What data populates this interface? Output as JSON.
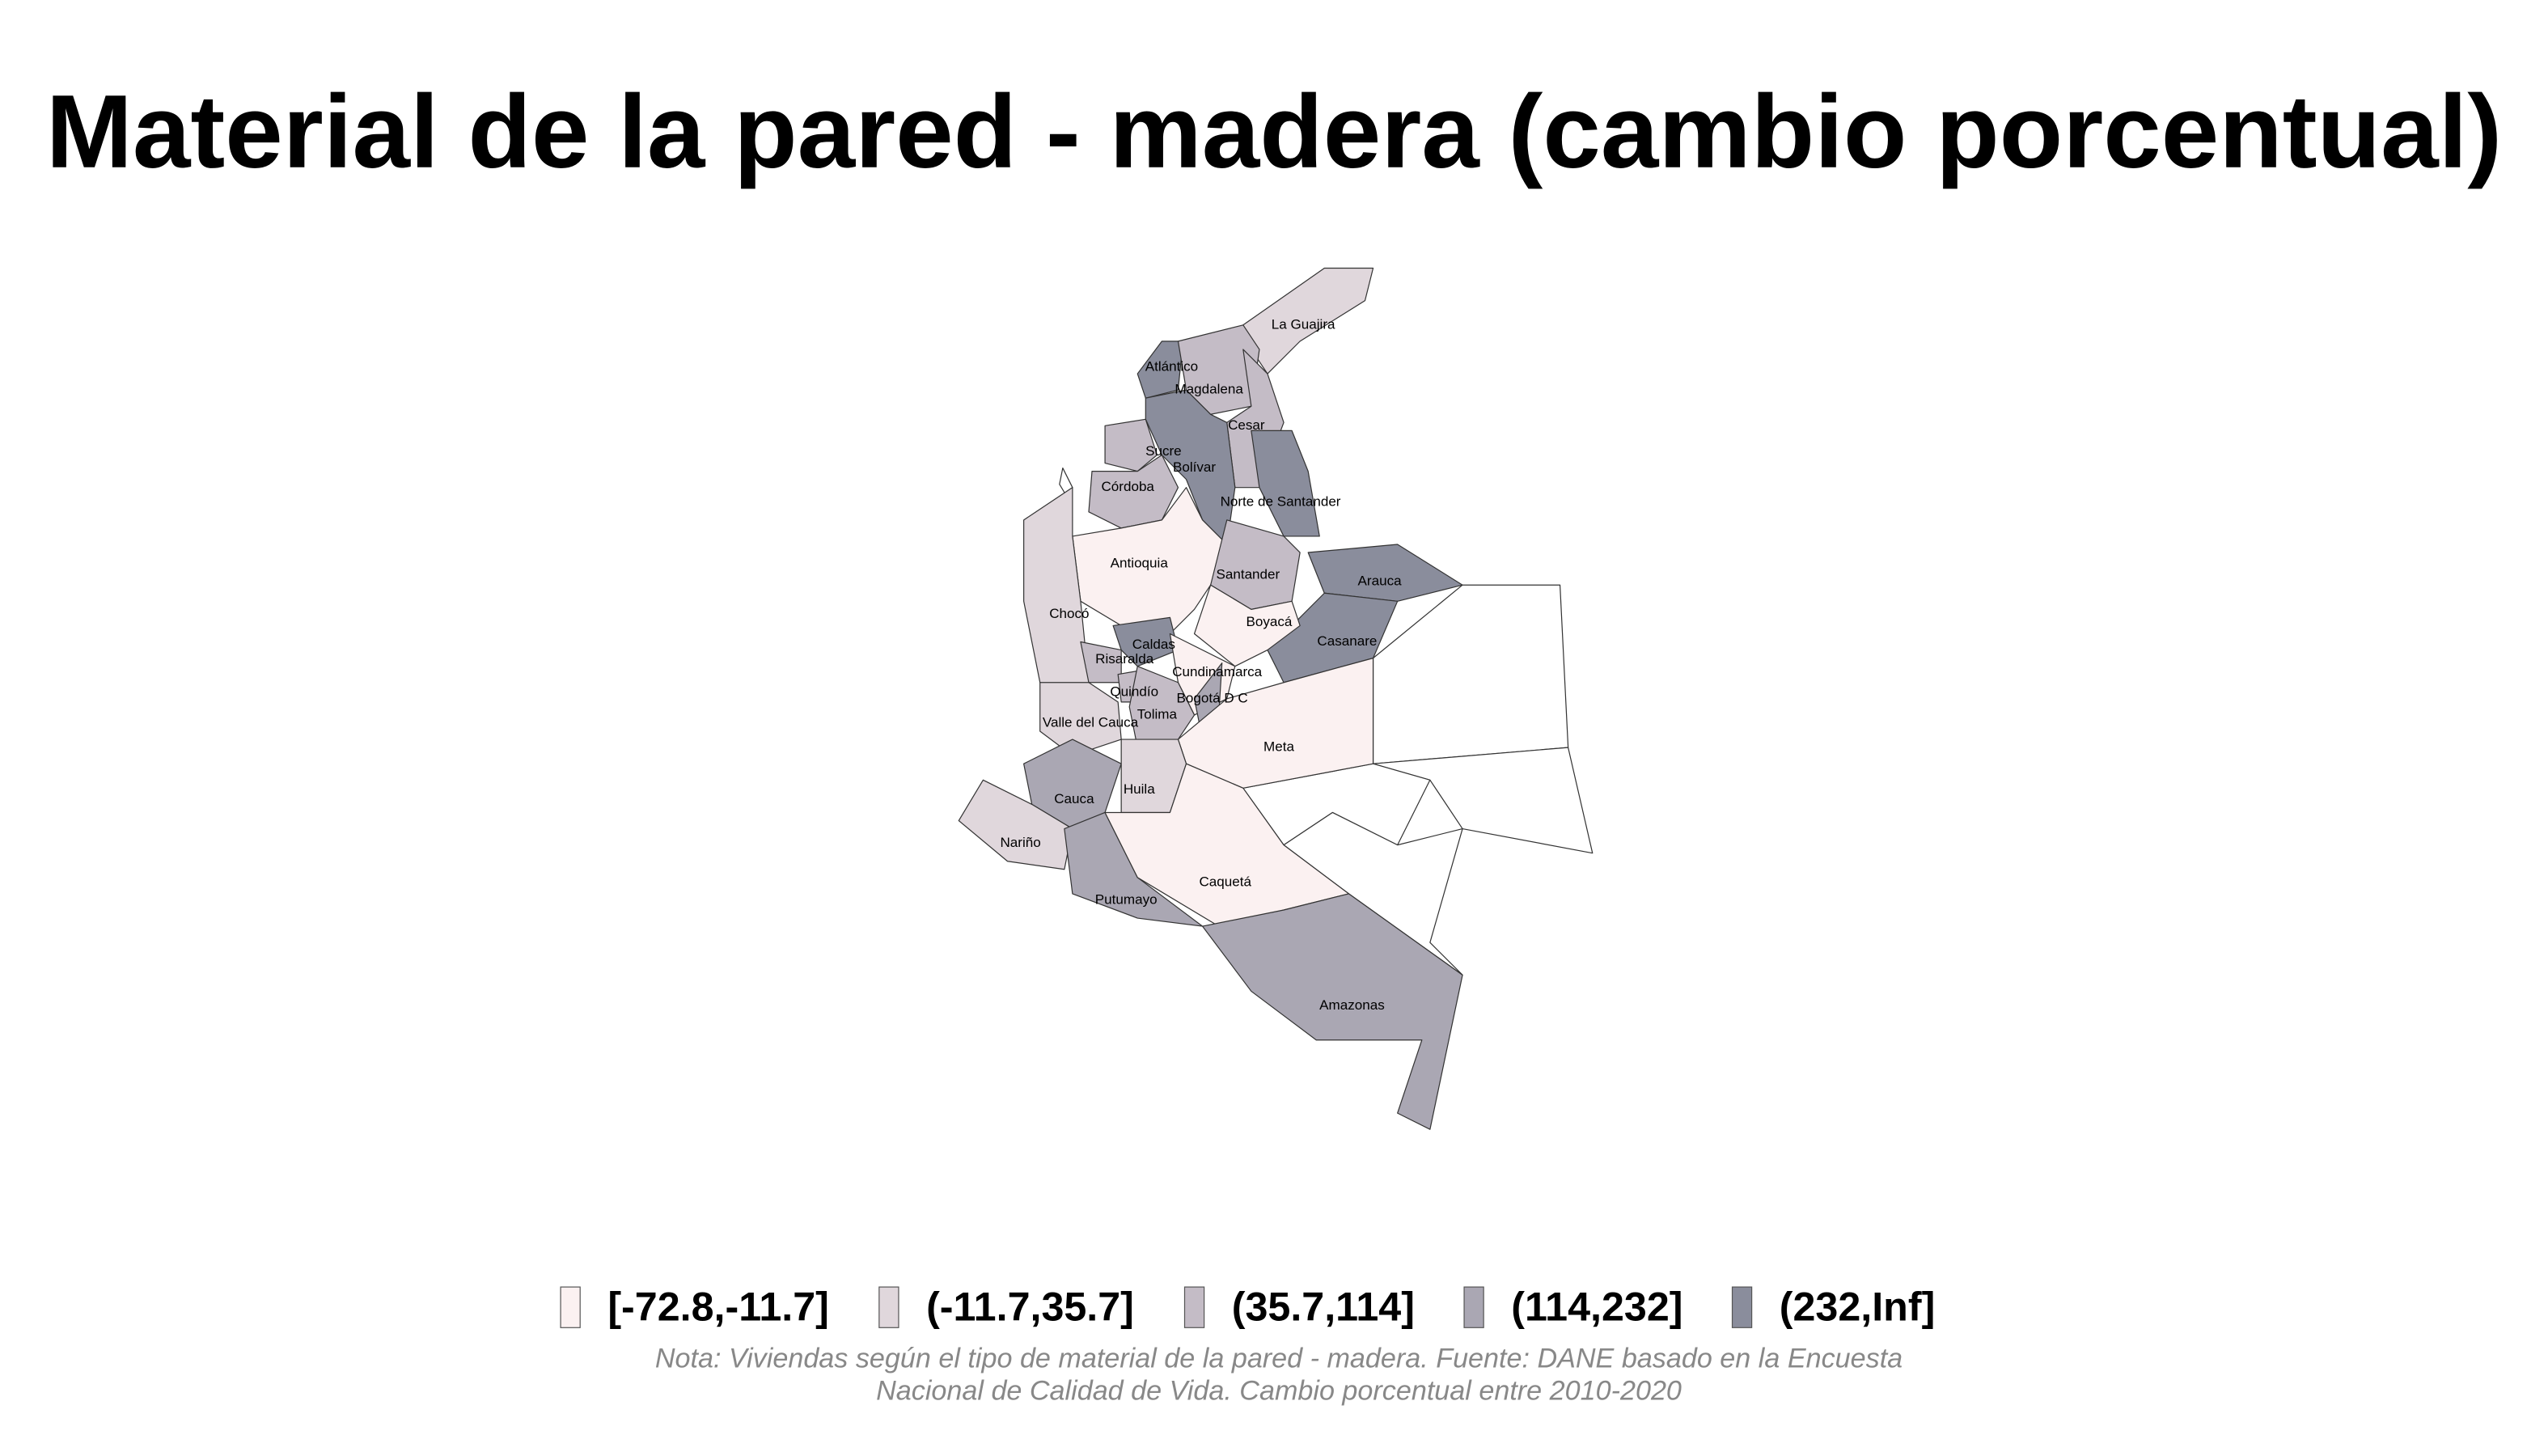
{
  "title": "Material de la pared - madera (cambio porcentual)",
  "legend": {
    "items": [
      {
        "label": "[-72.8,-11.7]",
        "color": "#fbf1f1"
      },
      {
        "label": "(-11.7,35.7]",
        "color": "#e0d7dc"
      },
      {
        "label": "(35.7,114]",
        "color": "#c4bcc6"
      },
      {
        "label": "(114,232]",
        "color": "#aaa7b3"
      },
      {
        "label": "(232,Inf]",
        "color": "#8a8d9c"
      }
    ]
  },
  "departments": [
    {
      "name": "La Guajira",
      "color": "#e0d7dc"
    },
    {
      "name": "Atlántico",
      "color": "#8a8d9c"
    },
    {
      "name": "Magdalena",
      "color": "#c4bcc6"
    },
    {
      "name": "Cesar",
      "color": "#c4bcc6"
    },
    {
      "name": "Sucre",
      "color": "#c4bcc6"
    },
    {
      "name": "Bolívar",
      "color": "#8a8d9c"
    },
    {
      "name": "Córdoba",
      "color": "#c4bcc6"
    },
    {
      "name": "Norte de Santander",
      "color": "#8a8d9c"
    },
    {
      "name": "Antioquia",
      "color": "#fbf1f1"
    },
    {
      "name": "Chocó",
      "color": "#e0d7dc"
    },
    {
      "name": "Santander",
      "color": "#c4bcc6"
    },
    {
      "name": "Arauca",
      "color": "#8a8d9c"
    },
    {
      "name": "Casanare",
      "color": "#8a8d9c"
    },
    {
      "name": "Boyacá",
      "color": "#fbf1f1"
    },
    {
      "name": "Caldas",
      "color": "#8a8d9c"
    },
    {
      "name": "Risaralda",
      "color": "#c4bcc6"
    },
    {
      "name": "Quindío",
      "color": "#c4bcc6"
    },
    {
      "name": "Cundinamarca",
      "color": "#fbf1f1"
    },
    {
      "name": "Bogotá D C",
      "color": "#aaa7b3"
    },
    {
      "name": "Tolima",
      "color": "#c4bcc6"
    },
    {
      "name": "Valle del Cauca",
      "color": "#e0d7dc"
    },
    {
      "name": "Meta",
      "color": "#fbf1f1"
    },
    {
      "name": "Cauca",
      "color": "#aaa7b3"
    },
    {
      "name": "Huila",
      "color": "#e0d7dc"
    },
    {
      "name": "Nariño",
      "color": "#e0d7dc"
    },
    {
      "name": "Putumayo",
      "color": "#aaa7b3"
    },
    {
      "name": "Caquetá",
      "color": "#fbf1f1"
    },
    {
      "name": "Amazonas",
      "color": "#aaa7b3"
    }
  ],
  "note": [
    "Nota: Viviendas según el tipo de material de la pared - madera. Fuente: DANE basado en la Encuesta",
    "Nacional de Calidad de Vida. Cambio porcentual entre 2010-2020"
  ]
}
